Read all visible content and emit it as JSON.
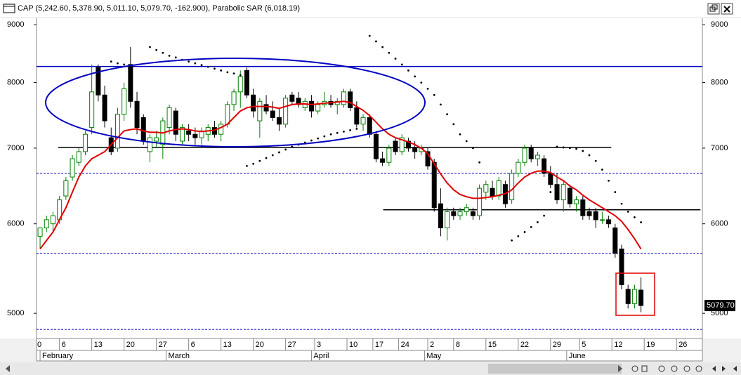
{
  "chart_data": {
    "type": "candlestick",
    "title": "CAP (5,242.60, 5,378.90, 5,011.10, 5,079.70, -162.900), Parabolic SAR (6,018.19)",
    "last_label": "5079.70",
    "log_scale": true,
    "ylim": [
      4750,
      9120
    ],
    "yticks": [
      5000,
      6000,
      7000,
      8000,
      9000
    ],
    "xlim": [
      -0.55,
      102.5
    ],
    "xticks": [
      {
        "value": -1,
        "label": "0"
      },
      {
        "value": 3,
        "label": "6"
      },
      {
        "value": 8,
        "label": "13"
      },
      {
        "value": 13,
        "label": "20"
      },
      {
        "value": 18,
        "label": "27"
      },
      {
        "value": 23,
        "label": "6"
      },
      {
        "value": 28,
        "label": "13"
      },
      {
        "value": 33,
        "label": "20"
      },
      {
        "value": 38,
        "label": "27"
      },
      {
        "value": 42.5,
        "label": "3"
      },
      {
        "value": 47.5,
        "label": "10"
      },
      {
        "value": 51.5,
        "label": "17"
      },
      {
        "value": 55.5,
        "label": "24"
      },
      {
        "value": 60,
        "label": "2"
      },
      {
        "value": 64,
        "label": "8"
      },
      {
        "value": 69,
        "label": "15"
      },
      {
        "value": 74,
        "label": "22"
      },
      {
        "value": 79,
        "label": "29"
      },
      {
        "value": 83.5,
        "label": "5"
      },
      {
        "value": 88.5,
        "label": "12"
      },
      {
        "value": 93.5,
        "label": "19"
      },
      {
        "value": 98.5,
        "label": "26"
      }
    ],
    "month_ticks": [
      {
        "value": 0,
        "label": "February"
      },
      {
        "value": 19.5,
        "label": "March"
      },
      {
        "value": 42,
        "label": "April"
      },
      {
        "value": 59.5,
        "label": "May"
      },
      {
        "value": 81.5,
        "label": "June"
      }
    ],
    "up_color": "#008000",
    "down_color": "#000000",
    "open": [
      5850,
      5950,
      6000,
      6050,
      6350,
      6600,
      6800,
      6950,
      7300,
      8250,
      7800,
      7150,
      7000,
      7500,
      8300,
      7700,
      7450,
      6950,
      7100,
      7050,
      7300,
      7550,
      7100,
      7250,
      7200,
      7150,
      7200,
      7300,
      7200,
      7350,
      7650,
      7850,
      8200,
      7800,
      7400,
      7650,
      7550,
      7450,
      7350,
      7800,
      7750,
      7600,
      7700,
      7550,
      7650,
      7700,
      7650,
      7650,
      7850,
      7600,
      7350,
      7450,
      7200,
      6850,
      6800,
      7100,
      6950,
      7100,
      7000,
      6950,
      6950,
      6800,
      6250,
      5950,
      6150,
      6100,
      6150,
      6150,
      6100,
      6400,
      6450,
      6350,
      6500,
      6300,
      6650,
      6800,
      7000,
      6850,
      6850,
      6650,
      6500,
      6300,
      6450,
      6250,
      6300,
      6150,
      6150,
      6050,
      6050,
      5950,
      5700,
      5250,
      5100,
      5242.6
    ],
    "high": [
      5950,
      6100,
      6150,
      6350,
      6600,
      6900,
      7000,
      7250,
      8300,
      8300,
      7950,
      7300,
      7600,
      8000,
      8600,
      7850,
      7500,
      7200,
      7250,
      7450,
      7650,
      7600,
      7350,
      7350,
      7300,
      7300,
      7350,
      7400,
      7400,
      7700,
      7900,
      8200,
      8250,
      7900,
      7750,
      7800,
      7700,
      7600,
      7800,
      7850,
      7850,
      7750,
      7800,
      7700,
      7850,
      7800,
      7750,
      7900,
      7900,
      7700,
      7500,
      7500,
      7250,
      6950,
      7050,
      7150,
      7200,
      7150,
      7100,
      7050,
      7000,
      6850,
      6450,
      6200,
      6200,
      6200,
      6250,
      6200,
      6500,
      6550,
      6550,
      6600,
      6550,
      6700,
      6850,
      7050,
      7050,
      6950,
      6900,
      6750,
      6650,
      6550,
      6500,
      6350,
      6350,
      6200,
      6200,
      6150,
      6100,
      6000,
      5750,
      5300,
      5300,
      5378.9
    ],
    "low": [
      5700,
      5900,
      5900,
      6000,
      6300,
      6550,
      6750,
      6900,
      7200,
      7700,
      7300,
      6900,
      6950,
      7400,
      7600,
      7200,
      7050,
      6800,
      7000,
      6850,
      7200,
      7100,
      7050,
      7100,
      7050,
      7050,
      7100,
      7150,
      7100,
      7300,
      7550,
      7600,
      7750,
      7450,
      7150,
      7500,
      7400,
      7250,
      7300,
      7650,
      7600,
      7550,
      7450,
      7500,
      7600,
      7600,
      7500,
      7600,
      7550,
      7300,
      7250,
      7150,
      6800,
      6750,
      6750,
      6900,
      6900,
      6950,
      6850,
      6900,
      6700,
      6150,
      5850,
      5800,
      6050,
      6050,
      6100,
      6050,
      6050,
      6300,
      6300,
      6300,
      6200,
      6250,
      6600,
      6750,
      6800,
      6750,
      6600,
      6450,
      6250,
      6150,
      6200,
      6150,
      6050,
      6050,
      5950,
      6000,
      5950,
      5600,
      5250,
      5050,
      5050,
      5011.1
    ],
    "close": [
      5950,
      6050,
      6100,
      6300,
      6550,
      6850,
      6950,
      7200,
      7850,
      7800,
      7400,
      6950,
      7500,
      7900,
      7700,
      7300,
      7100,
      7150,
      7150,
      7400,
      7600,
      7200,
      7300,
      7200,
      7150,
      7250,
      7300,
      7200,
      7350,
      7650,
      7850,
      8100,
      7800,
      7550,
      7700,
      7550,
      7450,
      7350,
      7750,
      7700,
      7650,
      7700,
      7550,
      7650,
      7700,
      7650,
      7700,
      7850,
      7600,
      7350,
      7450,
      7200,
      6850,
      6800,
      7000,
      6950,
      7150,
      7000,
      6950,
      7000,
      6750,
      6200,
      5950,
      6150,
      6100,
      6150,
      6200,
      6100,
      6450,
      6500,
      6350,
      6550,
      6250,
      6650,
      6800,
      7000,
      6850,
      6900,
      6650,
      6500,
      6300,
      6500,
      6250,
      6300,
      6100,
      6100,
      6050,
      6050,
      6000,
      5650,
      5300,
      5100,
      5250,
      5079.7
    ],
    "series": [
      {
        "name": "Moving Average",
        "color": "#e00000",
        "kind": "line",
        "values": [
          5700,
          5800,
          5900,
          6050,
          6200,
          6400,
          6600,
          6750,
          6850,
          6900,
          6950,
          7050,
          7150,
          7250,
          7270,
          7280,
          7250,
          7230,
          7230,
          7220,
          7250,
          7270,
          7280,
          7270,
          7250,
          7240,
          7250,
          7260,
          7300,
          7350,
          7450,
          7550,
          7600,
          7620,
          7620,
          7620,
          7610,
          7590,
          7620,
          7650,
          7660,
          7660,
          7650,
          7660,
          7670,
          7680,
          7690,
          7700,
          7680,
          7620,
          7560,
          7480,
          7380,
          7280,
          7200,
          7150,
          7120,
          7090,
          7050,
          7000,
          6920,
          6780,
          6640,
          6520,
          6430,
          6370,
          6340,
          6320,
          6320,
          6330,
          6340,
          6360,
          6380,
          6430,
          6520,
          6600,
          6650,
          6680,
          6680,
          6660,
          6600,
          6550,
          6480,
          6430,
          6360,
          6300,
          6250,
          6200,
          6150,
          6100,
          6030,
          5930,
          5820,
          5700
        ]
      },
      {
        "name": "Parabolic SAR",
        "color": "#000000",
        "kind": "dots",
        "values": [
          null,
          null,
          null,
          null,
          null,
          null,
          null,
          null,
          null,
          null,
          null,
          8350,
          8320,
          8300,
          null,
          null,
          null,
          8600,
          8550,
          8500,
          8450,
          8420,
          8380,
          8350,
          8320,
          8290,
          8260,
          8230,
          8200,
          8170,
          8150,
          8120,
          6750,
          6780,
          6820,
          6860,
          6900,
          6940,
          6980,
          7020,
          7050,
          7080,
          7110,
          7140,
          7170,
          7200,
          7220,
          7240,
          7260,
          7280,
          null,
          8800,
          8700,
          8600,
          8500,
          8400,
          8300,
          8200,
          8100,
          8000,
          7900,
          7800,
          7650,
          7500,
          7350,
          7200,
          7100,
          7000,
          6800,
          null,
          null,
          null,
          null,
          5800,
          5850,
          5900,
          5960,
          6020,
          6100,
          6400,
          7020,
          7010,
          7000,
          6990,
          6960,
          6900,
          6820,
          6700,
          6550,
          6400,
          6250,
          6150,
          6080,
          6018.19
        ]
      }
    ],
    "hlines": [
      {
        "value": 8267,
        "color": "#0000c0",
        "style": "solid",
        "from": -0.55,
        "to": 102.5
      },
      {
        "value": 7010,
        "color": "#000000",
        "style": "solid",
        "from": 2.8,
        "to": 88.4
      },
      {
        "value": 6174,
        "color": "#000000",
        "style": "solid",
        "from": 53.1,
        "to": 102.2
      },
      {
        "value": 6650,
        "color": "#0000c0",
        "style": "dashed",
        "from": -0.55,
        "to": 102.5
      },
      {
        "value": 5650,
        "color": "#0000c0",
        "style": "dashed",
        "from": -0.55,
        "to": 102.5
      },
      {
        "value": 4838,
        "color": "#0000c0",
        "style": "dashed",
        "from": -0.55,
        "to": 102.5
      }
    ]
  }
}
